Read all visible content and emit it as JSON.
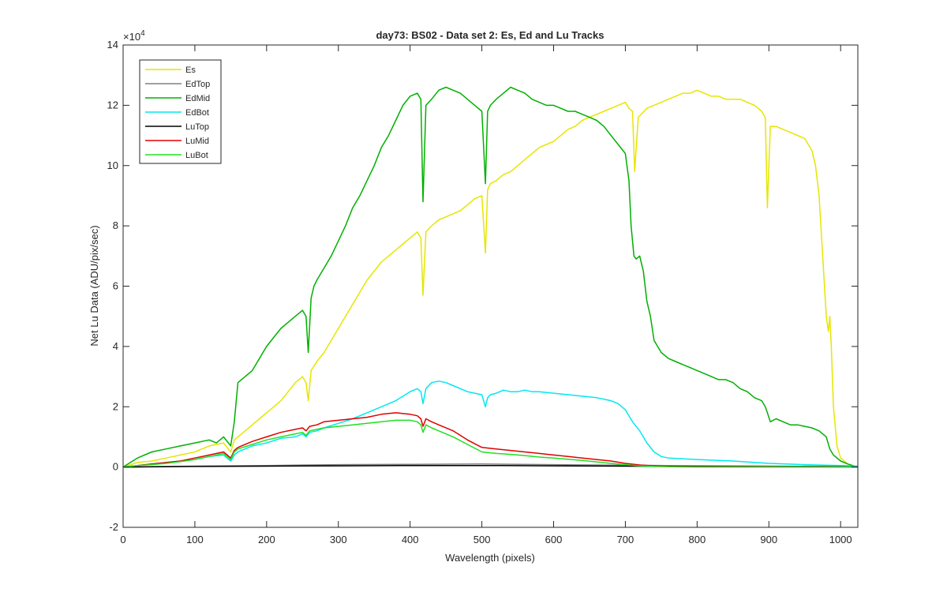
{
  "chart_data": {
    "type": "line",
    "title": "day73: BS02 - Data set 2: Es, Ed and Lu Tracks",
    "xlabel": "Wavelength (pixels)",
    "ylabel": "Net Lu Data (ADU/pix/sec)",
    "xlim": [
      0,
      1024
    ],
    "ylim": [
      -2,
      14
    ],
    "y_exponent_label": "×10",
    "y_exponent_power": "4",
    "xticks": [
      0,
      100,
      200,
      300,
      400,
      500,
      600,
      700,
      800,
      900,
      1000
    ],
    "xtick_labels": [
      "0",
      "100",
      "200",
      "300",
      "400",
      "500",
      "600",
      "700",
      "800",
      "900",
      "1000"
    ],
    "yticks": [
      -2,
      0,
      2,
      4,
      6,
      8,
      10,
      12,
      14
    ],
    "ytick_labels": [
      "-2",
      "0",
      "2",
      "4",
      "6",
      "8",
      "10",
      "12",
      "14"
    ],
    "grid": false,
    "legend_position": "top-left",
    "series": [
      {
        "name": "Es",
        "color": "#e6e600",
        "x": [
          0,
          20,
          40,
          60,
          80,
          100,
          120,
          140,
          150,
          155,
          160,
          170,
          180,
          190,
          200,
          210,
          220,
          230,
          240,
          250,
          255,
          258,
          262,
          270,
          280,
          290,
          300,
          310,
          320,
          330,
          340,
          350,
          360,
          370,
          380,
          390,
          400,
          410,
          415,
          418,
          422,
          430,
          440,
          450,
          460,
          470,
          480,
          490,
          500,
          505,
          508,
          512,
          520,
          530,
          540,
          550,
          560,
          570,
          580,
          590,
          600,
          610,
          620,
          630,
          640,
          650,
          660,
          670,
          680,
          690,
          700,
          705,
          710,
          713,
          718,
          730,
          740,
          750,
          760,
          770,
          780,
          790,
          800,
          810,
          820,
          830,
          840,
          850,
          860,
          870,
          880,
          890,
          895,
          898,
          902,
          910,
          920,
          930,
          940,
          950,
          960,
          965,
          970,
          975,
          980,
          983,
          985,
          987,
          990,
          995,
          1000,
          1010,
          1024
        ],
        "y": [
          0.0,
          0.15,
          0.2,
          0.3,
          0.4,
          0.5,
          0.7,
          0.8,
          0.5,
          0.9,
          1.0,
          1.2,
          1.4,
          1.6,
          1.8,
          2.0,
          2.2,
          2.5,
          2.8,
          3.0,
          2.8,
          2.2,
          3.2,
          3.5,
          3.8,
          4.2,
          4.6,
          5.0,
          5.4,
          5.8,
          6.2,
          6.5,
          6.8,
          7.0,
          7.2,
          7.4,
          7.6,
          7.8,
          7.6,
          5.7,
          7.8,
          8.0,
          8.2,
          8.3,
          8.4,
          8.5,
          8.7,
          8.9,
          9.0,
          7.1,
          9.2,
          9.4,
          9.5,
          9.7,
          9.8,
          10.0,
          10.2,
          10.4,
          10.6,
          10.7,
          10.8,
          11.0,
          11.2,
          11.3,
          11.5,
          11.6,
          11.7,
          11.8,
          11.9,
          12.0,
          12.1,
          11.9,
          11.8,
          9.8,
          11.6,
          11.9,
          12.0,
          12.1,
          12.2,
          12.3,
          12.4,
          12.4,
          12.5,
          12.4,
          12.3,
          12.3,
          12.2,
          12.2,
          12.2,
          12.1,
          12.0,
          11.8,
          11.6,
          8.6,
          11.3,
          11.3,
          11.2,
          11.1,
          11.0,
          10.9,
          10.5,
          10.0,
          9.0,
          7.0,
          5.0,
          4.5,
          5.0,
          4.0,
          2.0,
          0.7,
          0.3,
          0.1,
          0.0
        ]
      },
      {
        "name": "EdTop",
        "color": "#808080",
        "x": [
          0,
          100,
          200,
          300,
          400,
          500,
          600,
          700,
          800,
          900,
          1000,
          1024
        ],
        "y": [
          0.0,
          0.03,
          0.05,
          0.08,
          0.09,
          0.1,
          0.08,
          0.06,
          0.04,
          0.03,
          0.02,
          0.0
        ]
      },
      {
        "name": "EdMid",
        "color": "#00b000",
        "x": [
          0,
          20,
          40,
          60,
          80,
          100,
          120,
          130,
          140,
          150,
          155,
          160,
          170,
          180,
          190,
          200,
          210,
          220,
          230,
          240,
          250,
          255,
          258,
          262,
          266,
          270,
          280,
          290,
          300,
          310,
          320,
          330,
          340,
          350,
          360,
          370,
          380,
          390,
          400,
          410,
          415,
          418,
          422,
          430,
          440,
          450,
          460,
          470,
          480,
          490,
          500,
          505,
          508,
          512,
          520,
          530,
          540,
          550,
          560,
          570,
          580,
          590,
          600,
          610,
          620,
          630,
          640,
          650,
          660,
          670,
          680,
          690,
          700,
          705,
          708,
          712,
          715,
          720,
          725,
          730,
          735,
          740,
          750,
          760,
          770,
          780,
          790,
          800,
          810,
          820,
          830,
          840,
          850,
          860,
          870,
          880,
          890,
          895,
          898,
          902,
          910,
          920,
          930,
          940,
          950,
          960,
          970,
          980,
          985,
          990,
          1000,
          1010,
          1024
        ],
        "y": [
          0.0,
          0.3,
          0.5,
          0.6,
          0.7,
          0.8,
          0.9,
          0.8,
          1.0,
          0.7,
          1.5,
          2.8,
          3.0,
          3.2,
          3.6,
          4.0,
          4.3,
          4.6,
          4.8,
          5.0,
          5.2,
          5.0,
          3.8,
          5.6,
          6.0,
          6.2,
          6.6,
          7.0,
          7.5,
          8.0,
          8.6,
          9.0,
          9.5,
          10.0,
          10.6,
          11.0,
          11.5,
          12.0,
          12.3,
          12.4,
          12.2,
          8.8,
          12.0,
          12.2,
          12.5,
          12.6,
          12.5,
          12.4,
          12.2,
          12.0,
          11.8,
          9.4,
          11.8,
          12.0,
          12.2,
          12.4,
          12.6,
          12.5,
          12.4,
          12.2,
          12.1,
          12.0,
          12.0,
          11.9,
          11.8,
          11.8,
          11.7,
          11.6,
          11.5,
          11.3,
          11.0,
          10.7,
          10.4,
          9.5,
          8.0,
          7.0,
          6.9,
          7.0,
          6.5,
          5.5,
          5.0,
          4.2,
          3.8,
          3.6,
          3.5,
          3.4,
          3.3,
          3.2,
          3.1,
          3.0,
          2.9,
          2.9,
          2.8,
          2.6,
          2.5,
          2.3,
          2.2,
          2.0,
          1.8,
          1.5,
          1.6,
          1.5,
          1.4,
          1.4,
          1.35,
          1.3,
          1.2,
          1.0,
          0.6,
          0.4,
          0.2,
          0.1,
          0.0
        ]
      },
      {
        "name": "EdBot",
        "color": "#00e8f0",
        "x": [
          0,
          20,
          40,
          60,
          80,
          100,
          120,
          140,
          150,
          155,
          160,
          170,
          180,
          200,
          220,
          240,
          250,
          255,
          260,
          270,
          280,
          300,
          320,
          340,
          360,
          380,
          400,
          410,
          415,
          418,
          422,
          430,
          440,
          450,
          460,
          470,
          480,
          490,
          500,
          505,
          508,
          512,
          520,
          530,
          540,
          550,
          560,
          570,
          580,
          600,
          620,
          640,
          660,
          680,
          690,
          700,
          710,
          720,
          730,
          740,
          750,
          760,
          800,
          850,
          900,
          950,
          1000,
          1024
        ],
        "y": [
          0.0,
          0.05,
          0.1,
          0.15,
          0.2,
          0.25,
          0.35,
          0.4,
          0.2,
          0.4,
          0.5,
          0.6,
          0.7,
          0.8,
          0.95,
          1.0,
          1.1,
          1.0,
          1.15,
          1.2,
          1.3,
          1.45,
          1.6,
          1.8,
          2.0,
          2.2,
          2.5,
          2.6,
          2.5,
          2.1,
          2.6,
          2.8,
          2.85,
          2.8,
          2.7,
          2.6,
          2.5,
          2.45,
          2.4,
          2.0,
          2.3,
          2.4,
          2.45,
          2.55,
          2.5,
          2.5,
          2.55,
          2.5,
          2.5,
          2.45,
          2.4,
          2.35,
          2.3,
          2.2,
          2.1,
          1.9,
          1.5,
          1.2,
          0.8,
          0.5,
          0.35,
          0.3,
          0.25,
          0.2,
          0.12,
          0.08,
          0.05,
          0.03
        ]
      },
      {
        "name": "LuTop",
        "color": "#000000",
        "x": [
          0,
          100,
          200,
          300,
          400,
          500,
          600,
          700,
          800,
          900,
          1000,
          1024
        ],
        "y": [
          0.0,
          0.02,
          0.03,
          0.04,
          0.05,
          0.05,
          0.04,
          0.03,
          0.02,
          0.01,
          0.01,
          0.0
        ]
      },
      {
        "name": "LuMid",
        "color": "#e00000",
        "x": [
          0,
          20,
          40,
          60,
          80,
          100,
          120,
          140,
          150,
          155,
          160,
          180,
          200,
          220,
          240,
          250,
          255,
          260,
          270,
          280,
          300,
          320,
          340,
          360,
          380,
          400,
          410,
          415,
          418,
          422,
          430,
          440,
          460,
          480,
          500,
          520,
          540,
          560,
          580,
          600,
          620,
          640,
          660,
          680,
          700,
          720,
          740,
          760,
          800,
          1024
        ],
        "y": [
          0.0,
          0.05,
          0.1,
          0.15,
          0.2,
          0.3,
          0.4,
          0.5,
          0.3,
          0.55,
          0.65,
          0.85,
          1.0,
          1.15,
          1.25,
          1.3,
          1.2,
          1.35,
          1.4,
          1.5,
          1.55,
          1.6,
          1.65,
          1.75,
          1.8,
          1.75,
          1.7,
          1.6,
          1.35,
          1.6,
          1.5,
          1.4,
          1.2,
          0.9,
          0.65,
          0.6,
          0.55,
          0.5,
          0.45,
          0.4,
          0.35,
          0.3,
          0.25,
          0.2,
          0.12,
          0.07,
          0.04,
          0.02,
          0.01,
          0.0
        ]
      },
      {
        "name": "LuBot",
        "color": "#20e020",
        "x": [
          0,
          20,
          40,
          60,
          80,
          100,
          120,
          140,
          150,
          155,
          160,
          180,
          200,
          220,
          240,
          250,
          255,
          260,
          270,
          280,
          300,
          320,
          340,
          360,
          380,
          400,
          410,
          415,
          418,
          422,
          430,
          440,
          460,
          480,
          500,
          520,
          540,
          560,
          580,
          600,
          620,
          640,
          660,
          680,
          700,
          720,
          740,
          760,
          800,
          1024
        ],
        "y": [
          0.0,
          0.05,
          0.08,
          0.12,
          0.18,
          0.25,
          0.35,
          0.45,
          0.25,
          0.5,
          0.6,
          0.75,
          0.9,
          1.0,
          1.1,
          1.15,
          1.05,
          1.2,
          1.25,
          1.3,
          1.35,
          1.4,
          1.45,
          1.5,
          1.55,
          1.55,
          1.5,
          1.4,
          1.15,
          1.4,
          1.3,
          1.2,
          1.0,
          0.75,
          0.5,
          0.45,
          0.42,
          0.38,
          0.33,
          0.3,
          0.26,
          0.22,
          0.17,
          0.12,
          0.08,
          0.04,
          0.02,
          0.01,
          0.0,
          0.0
        ]
      }
    ]
  }
}
